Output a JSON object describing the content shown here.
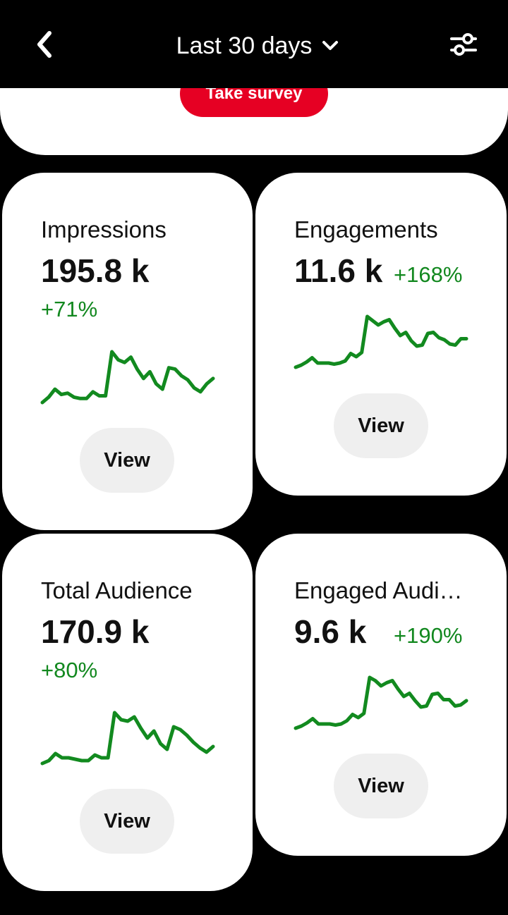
{
  "header": {
    "range_label": "Last 30 days",
    "back_icon": "chevron-left-icon",
    "dropdown_icon": "chevron-down-icon",
    "filter_icon": "sliders-icon"
  },
  "survey": {
    "button_label": "Take survey",
    "accent": "#e60023"
  },
  "cards": [
    {
      "title": "Impressions",
      "value": "195.8 k",
      "change": "+71%",
      "view_label": "View",
      "trend": [
        10,
        14,
        20,
        16,
        17,
        14,
        13,
        13,
        18,
        15,
        15,
        48,
        42,
        40,
        44,
        35,
        28,
        33,
        24,
        20,
        36,
        35,
        30,
        27,
        21,
        18,
        24,
        28
      ]
    },
    {
      "title": "Engagements",
      "value": "11.6 k",
      "change": "+168%",
      "view_label": "View",
      "trend": [
        10,
        12,
        15,
        19,
        14,
        14,
        14,
        13,
        14,
        16,
        23,
        20,
        24,
        58,
        54,
        50,
        53,
        55,
        47,
        40,
        43,
        35,
        30,
        31,
        42,
        43,
        38,
        36,
        32,
        31,
        37,
        37
      ]
    },
    {
      "title": "Total Audience",
      "value": "170.9 k",
      "change": "+80%",
      "view_label": "View",
      "trend": [
        10,
        12,
        17,
        14,
        14,
        13,
        12,
        12,
        16,
        14,
        14,
        46,
        41,
        40,
        43,
        35,
        28,
        33,
        24,
        20,
        36,
        34,
        30,
        25,
        21,
        18,
        22
      ]
    },
    {
      "title": "Engaged Audience",
      "value": "9.6 k",
      "change": "+190%",
      "view_label": "View",
      "trend": [
        10,
        12,
        15,
        19,
        14,
        14,
        14,
        13,
        14,
        17,
        23,
        20,
        24,
        58,
        55,
        50,
        53,
        55,
        47,
        40,
        43,
        36,
        30,
        31,
        42,
        43,
        37,
        37,
        31,
        32,
        36
      ]
    }
  ],
  "colors": {
    "positive": "#12881f",
    "line": "#128a1f"
  }
}
